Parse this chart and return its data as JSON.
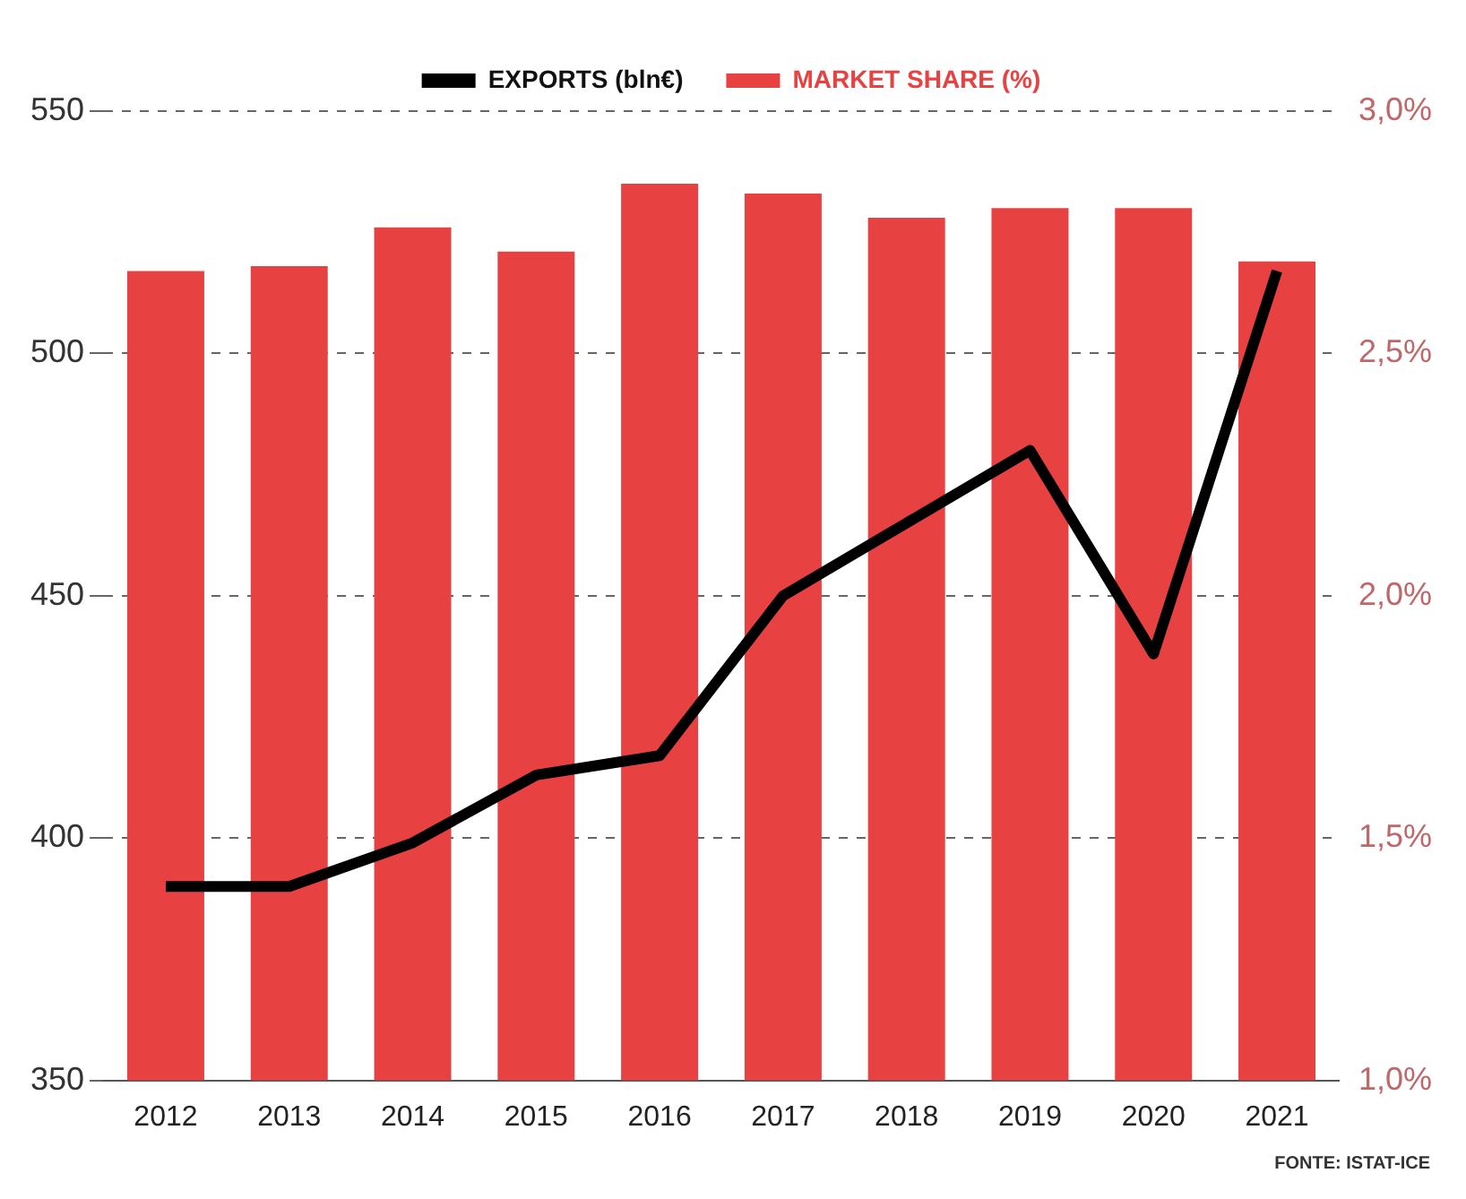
{
  "chart_data": {
    "type": "bar",
    "categories": [
      "2012",
      "2013",
      "2014",
      "2015",
      "2016",
      "2017",
      "2018",
      "2019",
      "2020",
      "2021"
    ],
    "series": [
      {
        "name": "EXPORTS (bln€)",
        "type": "line",
        "color": "#000000",
        "values": [
          390,
          390,
          399,
          413,
          417,
          450,
          465,
          480,
          438,
          517
        ]
      },
      {
        "name": "MARKET SHARE (%)",
        "axis": "y2",
        "color": "#e84142",
        "values": [
          2.67,
          2.68,
          2.76,
          2.71,
          2.85,
          2.83,
          2.78,
          2.8,
          2.8,
          2.69
        ]
      }
    ],
    "ylim": [
      350,
      550
    ],
    "yticks": [
      350,
      400,
      450,
      500,
      550
    ],
    "y2lim": [
      1.0,
      3.0
    ],
    "y2ticks": [
      {
        "value": 1.0,
        "label": "1,0%"
      },
      {
        "value": 1.5,
        "label": "1,5%"
      },
      {
        "value": 2.0,
        "label": "2,0%"
      },
      {
        "value": 2.5,
        "label": "2,5%"
      },
      {
        "value": 3.0,
        "label": "3,0%"
      }
    ],
    "grid": "y",
    "legend": "top",
    "marker": "none",
    "line_style": "solid",
    "annotations": [
      "FONTE: ISTAT-ICE"
    ]
  }
}
